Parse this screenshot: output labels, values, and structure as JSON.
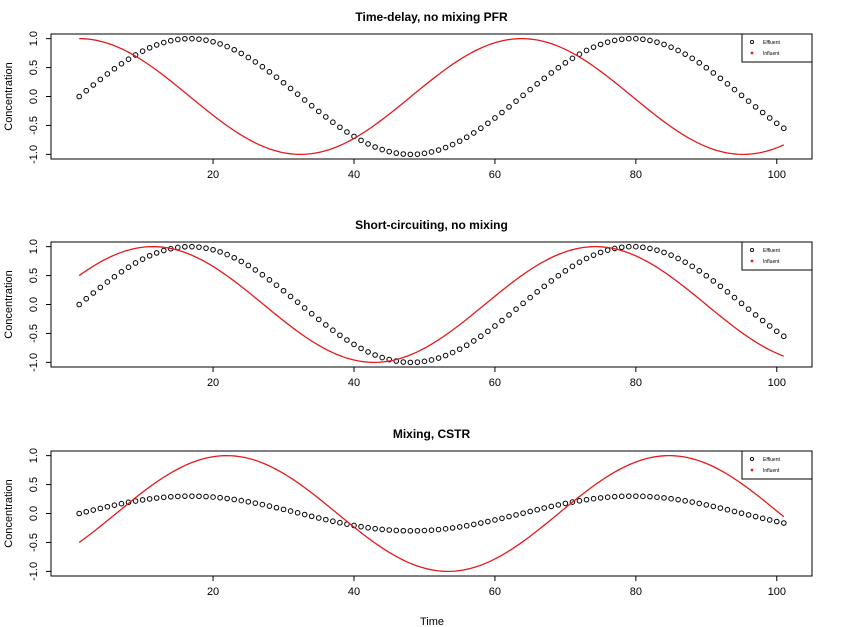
{
  "figure": {
    "xlabel": "Time"
  },
  "chart_data": [
    {
      "type": "line",
      "title": "Time-delay, no mixing PFR",
      "xlabel": "",
      "ylabel": "Concentration",
      "xlim": [
        1,
        101
      ],
      "ylim": [
        -1,
        1
      ],
      "x_ticks": [
        20,
        40,
        60,
        80,
        100
      ],
      "y_ticks": [
        -1.0,
        -0.5,
        0.0,
        0.5,
        1.0
      ],
      "x_tick_labels": [
        "20",
        "40",
        "60",
        "80",
        "100"
      ],
      "y_tick_labels": [
        "-1.0",
        "-0.5",
        "0.0",
        "0.5",
        "1.0"
      ],
      "legend": {
        "position": "top-right",
        "entries": [
          "Effluent",
          "Influent"
        ]
      },
      "series": [
        {
          "name": "Effluent",
          "style": "points",
          "color": "#000000",
          "shape": "open-circle",
          "function": "amplitude*sin(2*pi*(t-1)/period + phase)",
          "amplitude": 1.0,
          "period": 62.8,
          "phase": 0.0,
          "t_start": 1,
          "t_end": 101,
          "t_step": 1
        },
        {
          "name": "Influent",
          "style": "line",
          "color": "#e41a1c",
          "function": "amplitude*sin(2*pi*(t-1)/period + phase)",
          "amplitude": 1.0,
          "period": 62.8,
          "phase": 1.5708,
          "t_start": 1,
          "t_end": 101,
          "t_step": 0.5
        }
      ]
    },
    {
      "type": "line",
      "title": "Short-circuiting, no mixing",
      "xlabel": "",
      "ylabel": "Concentration",
      "xlim": [
        1,
        101
      ],
      "ylim": [
        -1,
        1
      ],
      "x_ticks": [
        20,
        40,
        60,
        80,
        100
      ],
      "y_ticks": [
        -1.0,
        -0.5,
        0.0,
        0.5,
        1.0
      ],
      "x_tick_labels": [
        "20",
        "40",
        "60",
        "80",
        "100"
      ],
      "y_tick_labels": [
        "-1.0",
        "-0.5",
        "0.0",
        "0.5",
        "1.0"
      ],
      "legend": {
        "position": "top-right",
        "entries": [
          "Effluent",
          "Influent"
        ]
      },
      "series": [
        {
          "name": "Effluent",
          "style": "points",
          "color": "#000000",
          "shape": "open-circle",
          "function": "amplitude*sin(2*pi*(t-1)/period + phase)",
          "amplitude": 1.0,
          "period": 62.8,
          "phase": 0.0,
          "t_start": 1,
          "t_end": 101,
          "t_step": 1
        },
        {
          "name": "Influent",
          "style": "line",
          "color": "#e41a1c",
          "function": "amplitude*sin(2*pi*(t-1)/period + phase)",
          "amplitude": 1.0,
          "period": 62.8,
          "phase": 0.5236,
          "t_start": 1,
          "t_end": 101,
          "t_step": 0.5
        }
      ]
    },
    {
      "type": "line",
      "title": "Mixing, CSTR",
      "xlabel": "",
      "ylabel": "Concentration",
      "xlim": [
        1,
        101
      ],
      "ylim": [
        -1,
        1
      ],
      "x_ticks": [
        20,
        40,
        60,
        80,
        100
      ],
      "y_ticks": [
        -1.0,
        -0.5,
        0.0,
        0.5,
        1.0
      ],
      "x_tick_labels": [
        "20",
        "40",
        "60",
        "80",
        "100"
      ],
      "y_tick_labels": [
        "-1.0",
        "-0.5",
        "0.0",
        "0.5",
        "1.0"
      ],
      "legend": {
        "position": "top-right",
        "entries": [
          "Effluent",
          "Influent"
        ]
      },
      "series": [
        {
          "name": "Effluent",
          "style": "points",
          "color": "#000000",
          "shape": "open-circle",
          "function": "amplitude*sin(2*pi*(t-1)/period + phase)",
          "amplitude": 0.3,
          "period": 62.8,
          "phase": 0.0,
          "t_start": 1,
          "t_end": 101,
          "t_step": 1
        },
        {
          "name": "Influent",
          "style": "line",
          "color": "#e41a1c",
          "function": "amplitude*sin(2*pi*(t-1)/period + phase)",
          "amplitude": 1.0,
          "period": 62.8,
          "phase": -0.5236,
          "t_start": 1,
          "t_end": 101,
          "t_step": 0.5
        }
      ]
    }
  ]
}
